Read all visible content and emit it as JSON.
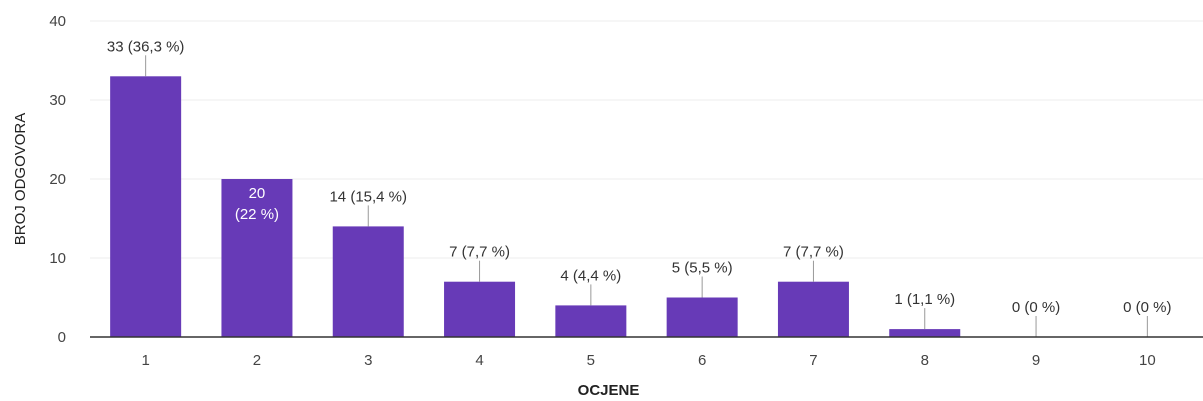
{
  "chart_data": {
    "type": "bar",
    "categories": [
      "1",
      "2",
      "3",
      "4",
      "5",
      "6",
      "7",
      "8",
      "9",
      "10"
    ],
    "values": [
      33,
      20,
      14,
      7,
      4,
      5,
      7,
      1,
      0,
      0
    ],
    "data_labels": [
      "33 (36,3 %)",
      "20 (22 %)",
      "14 (15,4 %)",
      "7 (7,7 %)",
      "4 (4,4 %)",
      "5 (5,5 %)",
      "7 (7,7 %)",
      "1 (1,1 %)",
      "0 (0 %)",
      "0 (0 %)"
    ],
    "xlabel": "OCJENE",
    "ylabel": "BROJ ODGOVORA",
    "ylim": [
      0,
      40
    ],
    "yticks": [
      "0",
      "10",
      "20",
      "30",
      "40"
    ],
    "grid": true,
    "legend": "none",
    "bar_color": "#673ab7",
    "grid_color": "#eeeeee",
    "axis_color": "#333333"
  }
}
